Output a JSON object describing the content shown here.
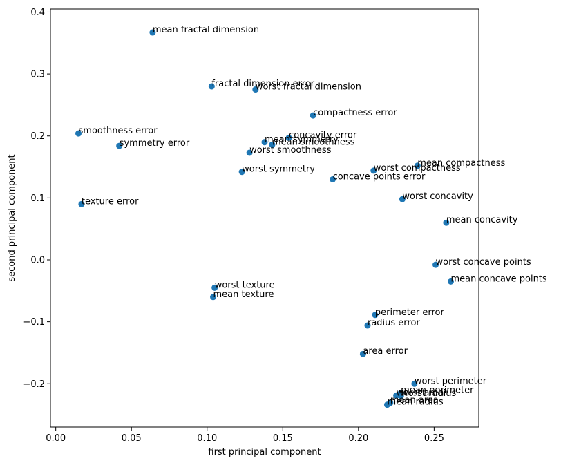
{
  "chart_data": {
    "type": "scatter",
    "title": "",
    "xlabel": "first principal component",
    "ylabel": "second principal component",
    "xlim": [
      -0.0035,
      0.2795
    ],
    "ylim": [
      -0.27,
      0.405
    ],
    "xticks": [
      0.0,
      0.05,
      0.1,
      0.15,
      0.2,
      0.25
    ],
    "xtick_labels": [
      "0.00",
      "0.05",
      "0.10",
      "0.15",
      "0.20",
      "0.25"
    ],
    "yticks": [
      -0.2,
      -0.1,
      0.0,
      0.1,
      0.2,
      0.3,
      0.4
    ],
    "ytick_labels": [
      "−0.2",
      "−0.1",
      "0.0",
      "0.1",
      "0.2",
      "0.3",
      "0.4"
    ],
    "grid": false,
    "marker_color": "#1f77b4",
    "points": [
      {
        "label": "mean radius",
        "x": 0.219,
        "y": -0.234
      },
      {
        "label": "mean texture",
        "x": 0.104,
        "y": -0.06
      },
      {
        "label": "mean perimeter",
        "x": 0.228,
        "y": -0.215
      },
      {
        "label": "mean area",
        "x": 0.221,
        "y": -0.231
      },
      {
        "label": "mean smoothness",
        "x": 0.143,
        "y": 0.186
      },
      {
        "label": "mean compactness",
        "x": 0.239,
        "y": 0.152
      },
      {
        "label": "mean concavity",
        "x": 0.258,
        "y": 0.06
      },
      {
        "label": "mean concave points",
        "x": 0.261,
        "y": -0.035
      },
      {
        "label": "mean symmetry",
        "x": 0.138,
        "y": 0.19
      },
      {
        "label": "mean fractal dimension",
        "x": 0.064,
        "y": 0.367
      },
      {
        "label": "radius error",
        "x": 0.206,
        "y": -0.106
      },
      {
        "label": "texture error",
        "x": 0.017,
        "y": 0.09
      },
      {
        "label": "perimeter error",
        "x": 0.211,
        "y": -0.089
      },
      {
        "label": "area error",
        "x": 0.203,
        "y": -0.152
      },
      {
        "label": "smoothness error",
        "x": 0.015,
        "y": 0.204
      },
      {
        "label": "compactness error",
        "x": 0.17,
        "y": 0.233
      },
      {
        "label": "concavity error",
        "x": 0.154,
        "y": 0.197
      },
      {
        "label": "concave points error",
        "x": 0.183,
        "y": 0.13
      },
      {
        "label": "symmetry error",
        "x": 0.042,
        "y": 0.184
      },
      {
        "label": "fractal dimension error",
        "x": 0.103,
        "y": 0.28
      },
      {
        "label": "worst radius",
        "x": 0.228,
        "y": -0.22
      },
      {
        "label": "worst texture",
        "x": 0.105,
        "y": -0.045
      },
      {
        "label": "worst perimeter",
        "x": 0.237,
        "y": -0.2
      },
      {
        "label": "worst area",
        "x": 0.225,
        "y": -0.219
      },
      {
        "label": "worst smoothness",
        "x": 0.128,
        "y": 0.173
      },
      {
        "label": "worst compactness",
        "x": 0.21,
        "y": 0.144
      },
      {
        "label": "worst concavity",
        "x": 0.229,
        "y": 0.098
      },
      {
        "label": "worst concave points",
        "x": 0.251,
        "y": -0.008
      },
      {
        "label": "worst symmetry",
        "x": 0.123,
        "y": 0.142
      },
      {
        "label": "worst fractal dimension",
        "x": 0.132,
        "y": 0.275
      }
    ]
  }
}
